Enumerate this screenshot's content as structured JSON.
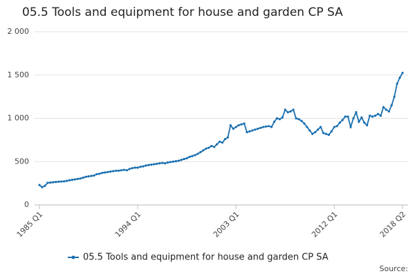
{
  "chart_data": {
    "type": "line",
    "title": "05.5 Tools and equipment for house and garden CP SA",
    "source": "Source:",
    "categories": [
      "1985 Q1",
      null,
      null,
      null,
      null,
      null,
      null,
      null,
      null,
      null,
      null,
      null,
      null,
      null,
      null,
      null,
      null,
      null,
      null,
      null,
      null,
      null,
      null,
      null,
      null,
      null,
      null,
      null,
      null,
      null,
      null,
      null,
      null,
      null,
      null,
      null,
      "1994 Q1",
      null,
      null,
      null,
      null,
      null,
      null,
      null,
      null,
      null,
      null,
      null,
      null,
      null,
      null,
      null,
      null,
      null,
      null,
      null,
      null,
      null,
      null,
      null,
      null,
      null,
      null,
      null,
      null,
      null,
      null,
      null,
      null,
      null,
      null,
      null,
      "2003 Q1",
      null,
      null,
      null,
      null,
      null,
      null,
      null,
      null,
      null,
      null,
      null,
      null,
      null,
      null,
      null,
      null,
      null,
      null,
      null,
      null,
      null,
      null,
      null,
      null,
      null,
      null,
      null,
      null,
      null,
      null,
      null,
      null,
      null,
      null,
      null,
      "2012 Q1",
      null,
      null,
      null,
      null,
      null,
      null,
      null,
      null,
      null,
      null,
      null,
      null,
      null,
      null,
      null,
      null,
      null,
      null,
      null,
      null,
      null,
      null,
      null,
      null,
      "2018 Q2"
    ],
    "series": [
      {
        "name": "05.5 Tools and equipment for house and garden CP SA",
        "color": "#1a6fb0",
        "values": [
          230,
          205,
          220,
          255,
          258,
          262,
          265,
          268,
          270,
          272,
          278,
          285,
          290,
          295,
          300,
          305,
          315,
          325,
          330,
          335,
          340,
          355,
          360,
          370,
          375,
          380,
          385,
          390,
          395,
          395,
          400,
          405,
          400,
          415,
          425,
          430,
          430,
          440,
          445,
          455,
          460,
          465,
          470,
          475,
          480,
          485,
          480,
          490,
          495,
          500,
          505,
          510,
          520,
          530,
          540,
          555,
          565,
          575,
          590,
          610,
          630,
          650,
          660,
          680,
          670,
          700,
          730,
          720,
          760,
          780,
          920,
          880,
          900,
          920,
          930,
          940,
          840,
          850,
          860,
          870,
          880,
          890,
          900,
          905,
          910,
          900,
          960,
          1000,
          990,
          1010,
          1100,
          1070,
          1080,
          1100,
          1000,
          990,
          970,
          940,
          900,
          860,
          820,
          840,
          870,
          900,
          830,
          820,
          810,
          850,
          900,
          910,
          950,
          980,
          1020,
          1020,
          900,
          1000,
          1070,
          960,
          1010,
          950,
          920,
          1030,
          1020,
          1030,
          1050,
          1030,
          1130,
          1100,
          1080,
          1150,
          1250,
          1400,
          1470,
          1525
        ]
      }
    ],
    "ylim": [
      0,
      2000
    ],
    "yticks": [
      0,
      500,
      {
        "value": 1000,
        "label": "1 000"
      },
      {
        "value": 1500,
        "label": "1 500"
      },
      {
        "value": 2000,
        "label": "2 000"
      }
    ],
    "grid": true
  }
}
